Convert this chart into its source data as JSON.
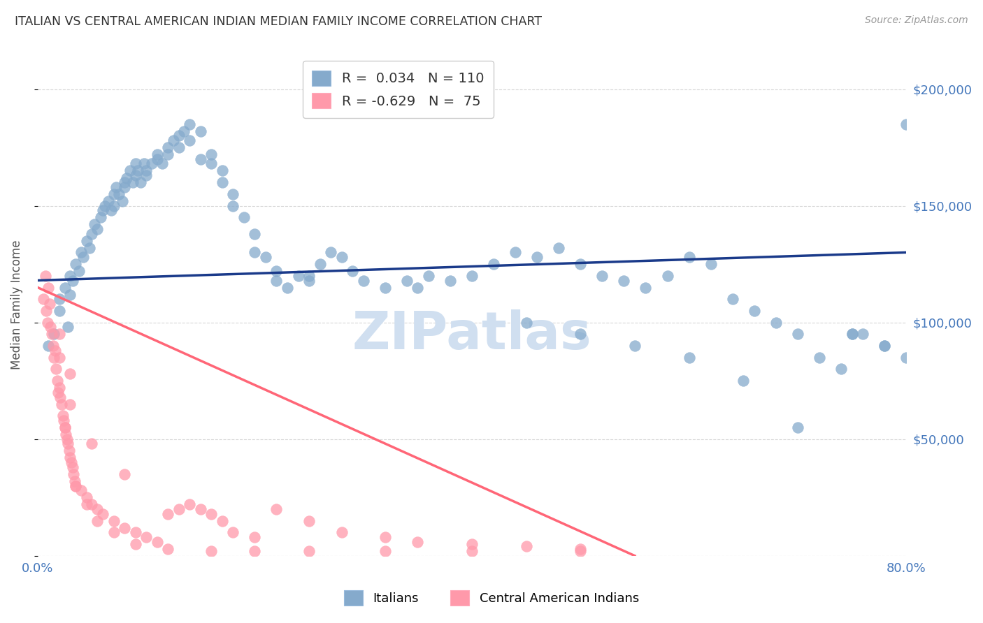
{
  "title": "ITALIAN VS CENTRAL AMERICAN INDIAN MEDIAN FAMILY INCOME CORRELATION CHART",
  "source": "Source: ZipAtlas.com",
  "ylabel": "Median Family Income",
  "y_ticks": [
    0,
    50000,
    100000,
    150000,
    200000
  ],
  "y_tick_labels": [
    "",
    "$50,000",
    "$100,000",
    "$150,000",
    "$200,000"
  ],
  "x_min": 0.0,
  "x_max": 80.0,
  "y_min": 0,
  "y_max": 215000,
  "legend_label1": "Italians",
  "legend_label2": "Central American Indians",
  "blue_color": "#85AACC",
  "pink_color": "#FF99AA",
  "blue_line_color": "#1a3a8a",
  "pink_line_color": "#FF6677",
  "title_color": "#333333",
  "source_color": "#999999",
  "axis_label_color": "#4477BB",
  "watermark_color": "#D0DFF0",
  "grid_color": "#BBBBBB",
  "blue_scatter_x": [
    1.0,
    1.5,
    2.0,
    2.0,
    2.5,
    2.8,
    3.0,
    3.0,
    3.2,
    3.5,
    3.8,
    4.0,
    4.2,
    4.5,
    4.8,
    5.0,
    5.2,
    5.5,
    5.8,
    6.0,
    6.2,
    6.5,
    6.8,
    7.0,
    7.0,
    7.2,
    7.5,
    7.8,
    8.0,
    8.0,
    8.2,
    8.5,
    8.8,
    9.0,
    9.0,
    9.2,
    9.5,
    9.8,
    10.0,
    10.0,
    10.5,
    11.0,
    11.0,
    11.5,
    12.0,
    12.0,
    12.5,
    13.0,
    13.0,
    13.5,
    14.0,
    14.0,
    15.0,
    15.0,
    16.0,
    16.0,
    17.0,
    17.0,
    18.0,
    18.0,
    19.0,
    20.0,
    20.0,
    21.0,
    22.0,
    22.0,
    23.0,
    24.0,
    25.0,
    25.0,
    26.0,
    27.0,
    28.0,
    29.0,
    30.0,
    32.0,
    34.0,
    35.0,
    36.0,
    38.0,
    40.0,
    42.0,
    44.0,
    46.0,
    48.0,
    50.0,
    52.0,
    54.0,
    56.0,
    58.0,
    60.0,
    62.0,
    64.0,
    66.0,
    68.0,
    70.0,
    72.0,
    74.0,
    76.0,
    78.0,
    80.0,
    45.0,
    50.0,
    55.0,
    60.0,
    65.0,
    70.0,
    75.0,
    78.0,
    80.0,
    75.0
  ],
  "blue_scatter_y": [
    90000,
    95000,
    110000,
    105000,
    115000,
    98000,
    120000,
    112000,
    118000,
    125000,
    122000,
    130000,
    128000,
    135000,
    132000,
    138000,
    142000,
    140000,
    145000,
    148000,
    150000,
    152000,
    148000,
    155000,
    150000,
    158000,
    155000,
    152000,
    160000,
    158000,
    162000,
    165000,
    160000,
    168000,
    163000,
    165000,
    160000,
    168000,
    163000,
    165000,
    168000,
    170000,
    172000,
    168000,
    175000,
    172000,
    178000,
    180000,
    175000,
    182000,
    178000,
    185000,
    182000,
    170000,
    168000,
    172000,
    165000,
    160000,
    155000,
    150000,
    145000,
    138000,
    130000,
    128000,
    122000,
    118000,
    115000,
    120000,
    118000,
    120000,
    125000,
    130000,
    128000,
    122000,
    118000,
    115000,
    118000,
    115000,
    120000,
    118000,
    120000,
    125000,
    130000,
    128000,
    132000,
    125000,
    120000,
    118000,
    115000,
    120000,
    128000,
    125000,
    110000,
    105000,
    100000,
    95000,
    85000,
    80000,
    95000,
    90000,
    185000,
    100000,
    95000,
    90000,
    85000,
    75000,
    55000,
    95000,
    90000,
    85000,
    95000
  ],
  "pink_scatter_x": [
    0.5,
    0.7,
    0.8,
    0.9,
    1.0,
    1.1,
    1.2,
    1.3,
    1.4,
    1.5,
    1.6,
    1.7,
    1.8,
    1.9,
    2.0,
    2.0,
    2.1,
    2.2,
    2.3,
    2.4,
    2.5,
    2.6,
    2.7,
    2.8,
    2.9,
    3.0,
    3.0,
    3.1,
    3.2,
    3.3,
    3.4,
    3.5,
    4.0,
    4.5,
    5.0,
    5.5,
    6.0,
    7.0,
    8.0,
    9.0,
    10.0,
    11.0,
    12.0,
    13.0,
    14.0,
    15.0,
    16.0,
    17.0,
    18.0,
    20.0,
    22.0,
    25.0,
    28.0,
    32.0,
    35.0,
    40.0,
    45.0,
    50.0,
    2.5,
    3.5,
    4.5,
    5.5,
    7.0,
    9.0,
    12.0,
    16.0,
    20.0,
    25.0,
    32.0,
    40.0,
    50.0,
    2.0,
    3.0,
    5.0,
    8.0
  ],
  "pink_scatter_y": [
    110000,
    120000,
    105000,
    100000,
    115000,
    108000,
    98000,
    95000,
    90000,
    85000,
    88000,
    80000,
    75000,
    70000,
    72000,
    95000,
    68000,
    65000,
    60000,
    58000,
    55000,
    52000,
    50000,
    48000,
    45000,
    42000,
    78000,
    40000,
    38000,
    35000,
    32000,
    30000,
    28000,
    25000,
    22000,
    20000,
    18000,
    15000,
    12000,
    10000,
    8000,
    6000,
    18000,
    20000,
    22000,
    20000,
    18000,
    15000,
    10000,
    8000,
    20000,
    15000,
    10000,
    8000,
    6000,
    5000,
    4000,
    3000,
    55000,
    30000,
    22000,
    15000,
    10000,
    5000,
    3000,
    2000,
    2000,
    2000,
    2000,
    2000,
    2000,
    85000,
    65000,
    48000,
    35000
  ],
  "blue_trendline_x": [
    0.0,
    80.0
  ],
  "blue_trendline_y": [
    118000,
    130000
  ],
  "pink_trendline_x": [
    0.0,
    55.0
  ],
  "pink_trendline_y": [
    115000,
    0
  ]
}
